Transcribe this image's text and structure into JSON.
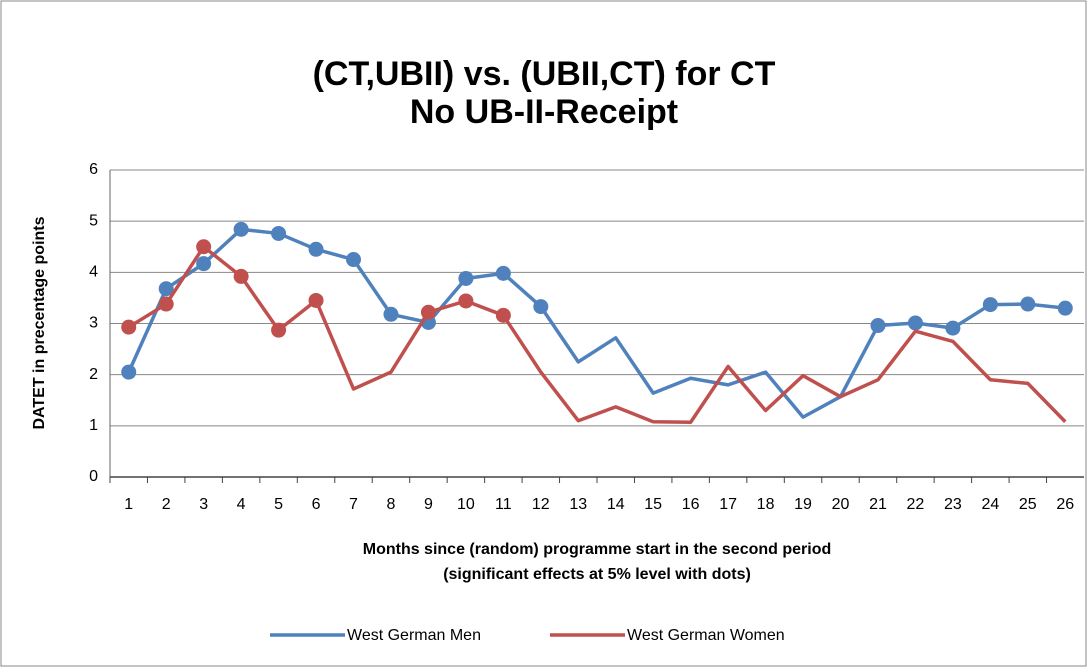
{
  "chart_data": {
    "type": "line",
    "title": [
      "(CT,UBII) vs. (UBII,CT) for CT",
      "No UB-II-Receipt"
    ],
    "y_label": "DATET in precentage points",
    "x_label": [
      "Months since (random) programme start in the second period",
      "(significant effects at 5% level with dots)"
    ],
    "categories": [
      "1",
      "2",
      "3",
      "4",
      "5",
      "6",
      "7",
      "8",
      "9",
      "10",
      "11",
      "12",
      "13",
      "14",
      "15",
      "16",
      "17",
      "18",
      "19",
      "20",
      "21",
      "22",
      "23",
      "24",
      "25",
      "26"
    ],
    "series": [
      {
        "name": "West German Men",
        "color": "#4f81bd",
        "values": [
          2.05,
          3.68,
          4.17,
          4.84,
          4.76,
          4.45,
          4.25,
          3.18,
          3.02,
          3.88,
          3.98,
          3.33,
          2.25,
          2.72,
          1.64,
          1.93,
          1.8,
          2.05,
          1.17,
          1.57,
          2.96,
          3.01,
          2.91,
          3.37,
          3.38,
          3.3
        ],
        "dots": [
          true,
          true,
          true,
          true,
          true,
          true,
          true,
          true,
          true,
          true,
          true,
          true,
          false,
          false,
          false,
          false,
          false,
          false,
          false,
          false,
          true,
          true,
          true,
          true,
          true,
          true
        ]
      },
      {
        "name": "West German Women",
        "color": "#c0504d",
        "values": [
          2.93,
          3.38,
          4.5,
          3.92,
          2.87,
          3.45,
          1.72,
          2.05,
          3.22,
          3.44,
          3.16,
          2.05,
          1.1,
          1.37,
          1.08,
          1.07,
          2.16,
          1.3,
          1.98,
          1.57,
          1.9,
          2.85,
          2.65,
          1.9,
          1.83,
          1.08
        ],
        "dots": [
          true,
          true,
          true,
          true,
          true,
          true,
          false,
          false,
          true,
          true,
          true,
          false,
          false,
          false,
          false,
          false,
          false,
          false,
          false,
          false,
          false,
          false,
          false,
          false,
          false,
          false
        ]
      }
    ],
    "ylim": [
      0,
      6
    ],
    "yticks": [
      0,
      1,
      2,
      3,
      4,
      5,
      6
    ],
    "grid": true,
    "legend": "bottom"
  }
}
